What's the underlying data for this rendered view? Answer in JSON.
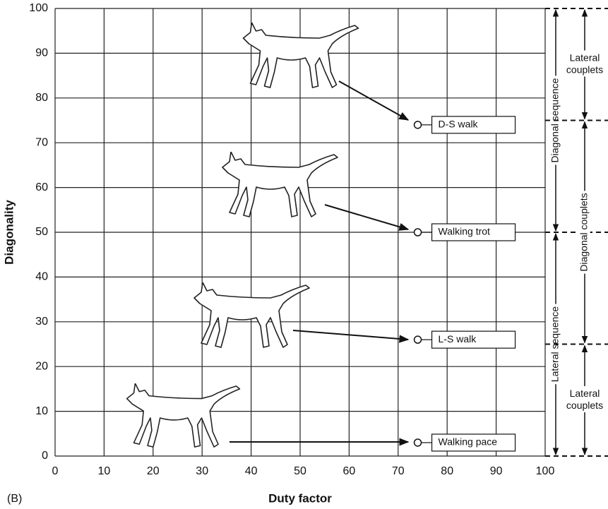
{
  "chart_data": {
    "type": "scatter",
    "panel_label": "(B)",
    "xlabel": "Duty factor",
    "ylabel": "Diagonality",
    "xlim": [
      0,
      100
    ],
    "ylim": [
      0,
      100
    ],
    "xticks": [
      0,
      10,
      20,
      30,
      40,
      50,
      60,
      70,
      80,
      90,
      100
    ],
    "yticks": [
      0,
      10,
      20,
      30,
      40,
      50,
      60,
      70,
      80,
      90,
      100
    ],
    "grid": true,
    "points": [
      {
        "label": "D-S walk",
        "x": 74,
        "y": 74
      },
      {
        "label": "Walking trot",
        "x": 74,
        "y": 50
      },
      {
        "label": "L-S walk",
        "x": 74,
        "y": 26
      },
      {
        "label": "Walking pace",
        "x": 74,
        "y": 3
      }
    ],
    "ranges": [
      {
        "label_lines": [
          "Diagonal sequence"
        ],
        "from": 50,
        "to": 100,
        "column": "sequence"
      },
      {
        "label_lines": [
          "Lateral sequence"
        ],
        "from": 0,
        "to": 50,
        "column": "sequence"
      },
      {
        "label_lines": [
          "Lateral",
          "couplets"
        ],
        "from": 75,
        "to": 100,
        "column": "couplets"
      },
      {
        "label_lines": [
          "Diagonal couplets"
        ],
        "from": 25,
        "to": 75,
        "column": "couplets"
      },
      {
        "label_lines": [
          "Lateral",
          "couplets"
        ],
        "from": 0,
        "to": 25,
        "column": "couplets"
      }
    ]
  }
}
